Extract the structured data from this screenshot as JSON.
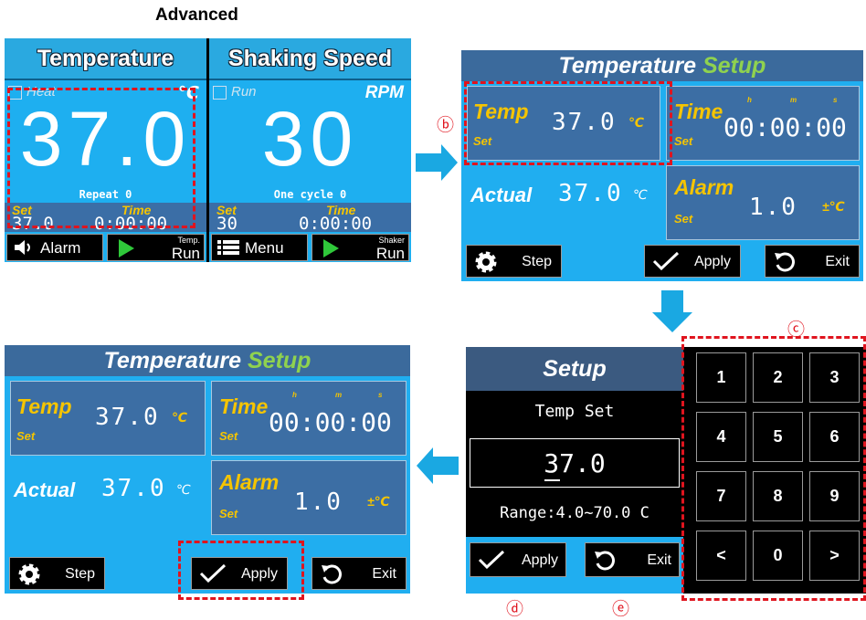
{
  "page_title": "Advanced",
  "main_screen": {
    "temperature": {
      "header": "Temperature",
      "checkbox_label": "Heat",
      "unit": "℃",
      "value": "37.0",
      "counter": "Repeat 0",
      "set_label": "Set",
      "time_label": "Time",
      "set_value": "37.0",
      "time_value": "0:00:00",
      "buttons": [
        {
          "label": "Alarm"
        },
        {
          "small": "Temp.",
          "label": "Run"
        }
      ]
    },
    "shaking": {
      "header": "Shaking Speed",
      "checkbox_label": "Run",
      "unit": "RPM",
      "value": "30",
      "counter": "One cycle 0",
      "set_label": "Set",
      "time_label": "Time",
      "set_value": "30",
      "time_value": "0:00:00",
      "buttons": [
        {
          "label": "Menu"
        },
        {
          "small": "Shaker",
          "label": "Run"
        }
      ]
    }
  },
  "setup_screen_top": {
    "title": "Temperature",
    "title_accent": "Setup",
    "temp": {
      "label": "Temp",
      "sub": "Set",
      "value": "37.0",
      "unit": "℃"
    },
    "time": {
      "label": "Time",
      "sub": "Set",
      "units": [
        "h",
        "m",
        "s"
      ],
      "value": "00:00:00"
    },
    "actual": {
      "label": "Actual",
      "value": "37.0",
      "unit": "℃"
    },
    "alarm": {
      "label": "Alarm",
      "sub": "Set",
      "value": "1.0",
      "unit": "±℃"
    },
    "buttons": [
      "Step",
      "Apply",
      "Exit"
    ]
  },
  "setup_screen_bottom": {
    "title": "Temperature",
    "title_accent": "Setup",
    "temp": {
      "label": "Temp",
      "sub": "Set",
      "value": "37.0",
      "unit": "℃"
    },
    "time": {
      "label": "Time",
      "sub": "Set",
      "units": [
        "h",
        "m",
        "s"
      ],
      "value": "00:00:00"
    },
    "actual": {
      "label": "Actual",
      "value": "37.0",
      "unit": "℃"
    },
    "alarm": {
      "label": "Alarm",
      "sub": "Set",
      "value": "1.0",
      "unit": "±℃"
    },
    "buttons": [
      "Step",
      "Apply",
      "Exit"
    ]
  },
  "keypad_screen": {
    "title": "Setup",
    "field_label": "Temp Set",
    "input_value": "37.0",
    "range": "Range:4.0~70.0 C",
    "buttons": [
      "Apply",
      "Exit"
    ],
    "keys": [
      "1",
      "2",
      "3",
      "4",
      "5",
      "6",
      "7",
      "8",
      "9",
      "<",
      "0",
      ">"
    ]
  },
  "callouts": {
    "b": "ⓑ",
    "c": "ⓒ",
    "d": "ⓓ",
    "e": "ⓔ"
  }
}
